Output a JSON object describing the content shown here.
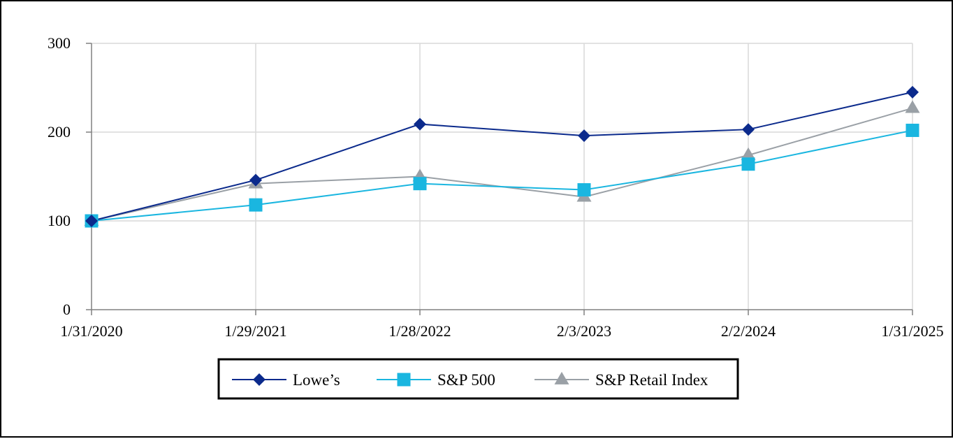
{
  "chart_data": {
    "type": "line",
    "title": "",
    "xlabel": "",
    "ylabel": "",
    "categories": [
      "1/31/2020",
      "1/29/2021",
      "1/28/2022",
      "2/3/2023",
      "2/2/2024",
      "1/31/2025"
    ],
    "yticks": [
      "0",
      "100",
      "200",
      "300"
    ],
    "ylim": [
      0,
      300
    ],
    "grid": true,
    "legend_position": "bottom",
    "series": [
      {
        "name": "Lowe’s",
        "values": [
          100,
          146,
          209,
          196,
          203,
          245
        ],
        "color": "#0b2a8c",
        "marker": "diamond"
      },
      {
        "name": "S&P 500",
        "values": [
          100,
          118,
          142,
          135,
          164,
          202
        ],
        "color": "#1ab6e0",
        "marker": "square"
      },
      {
        "name": "S&P Retail Index",
        "values": [
          100,
          142,
          150,
          127,
          174,
          227
        ],
        "color": "#9aa0a6",
        "marker": "triangle"
      }
    ]
  }
}
